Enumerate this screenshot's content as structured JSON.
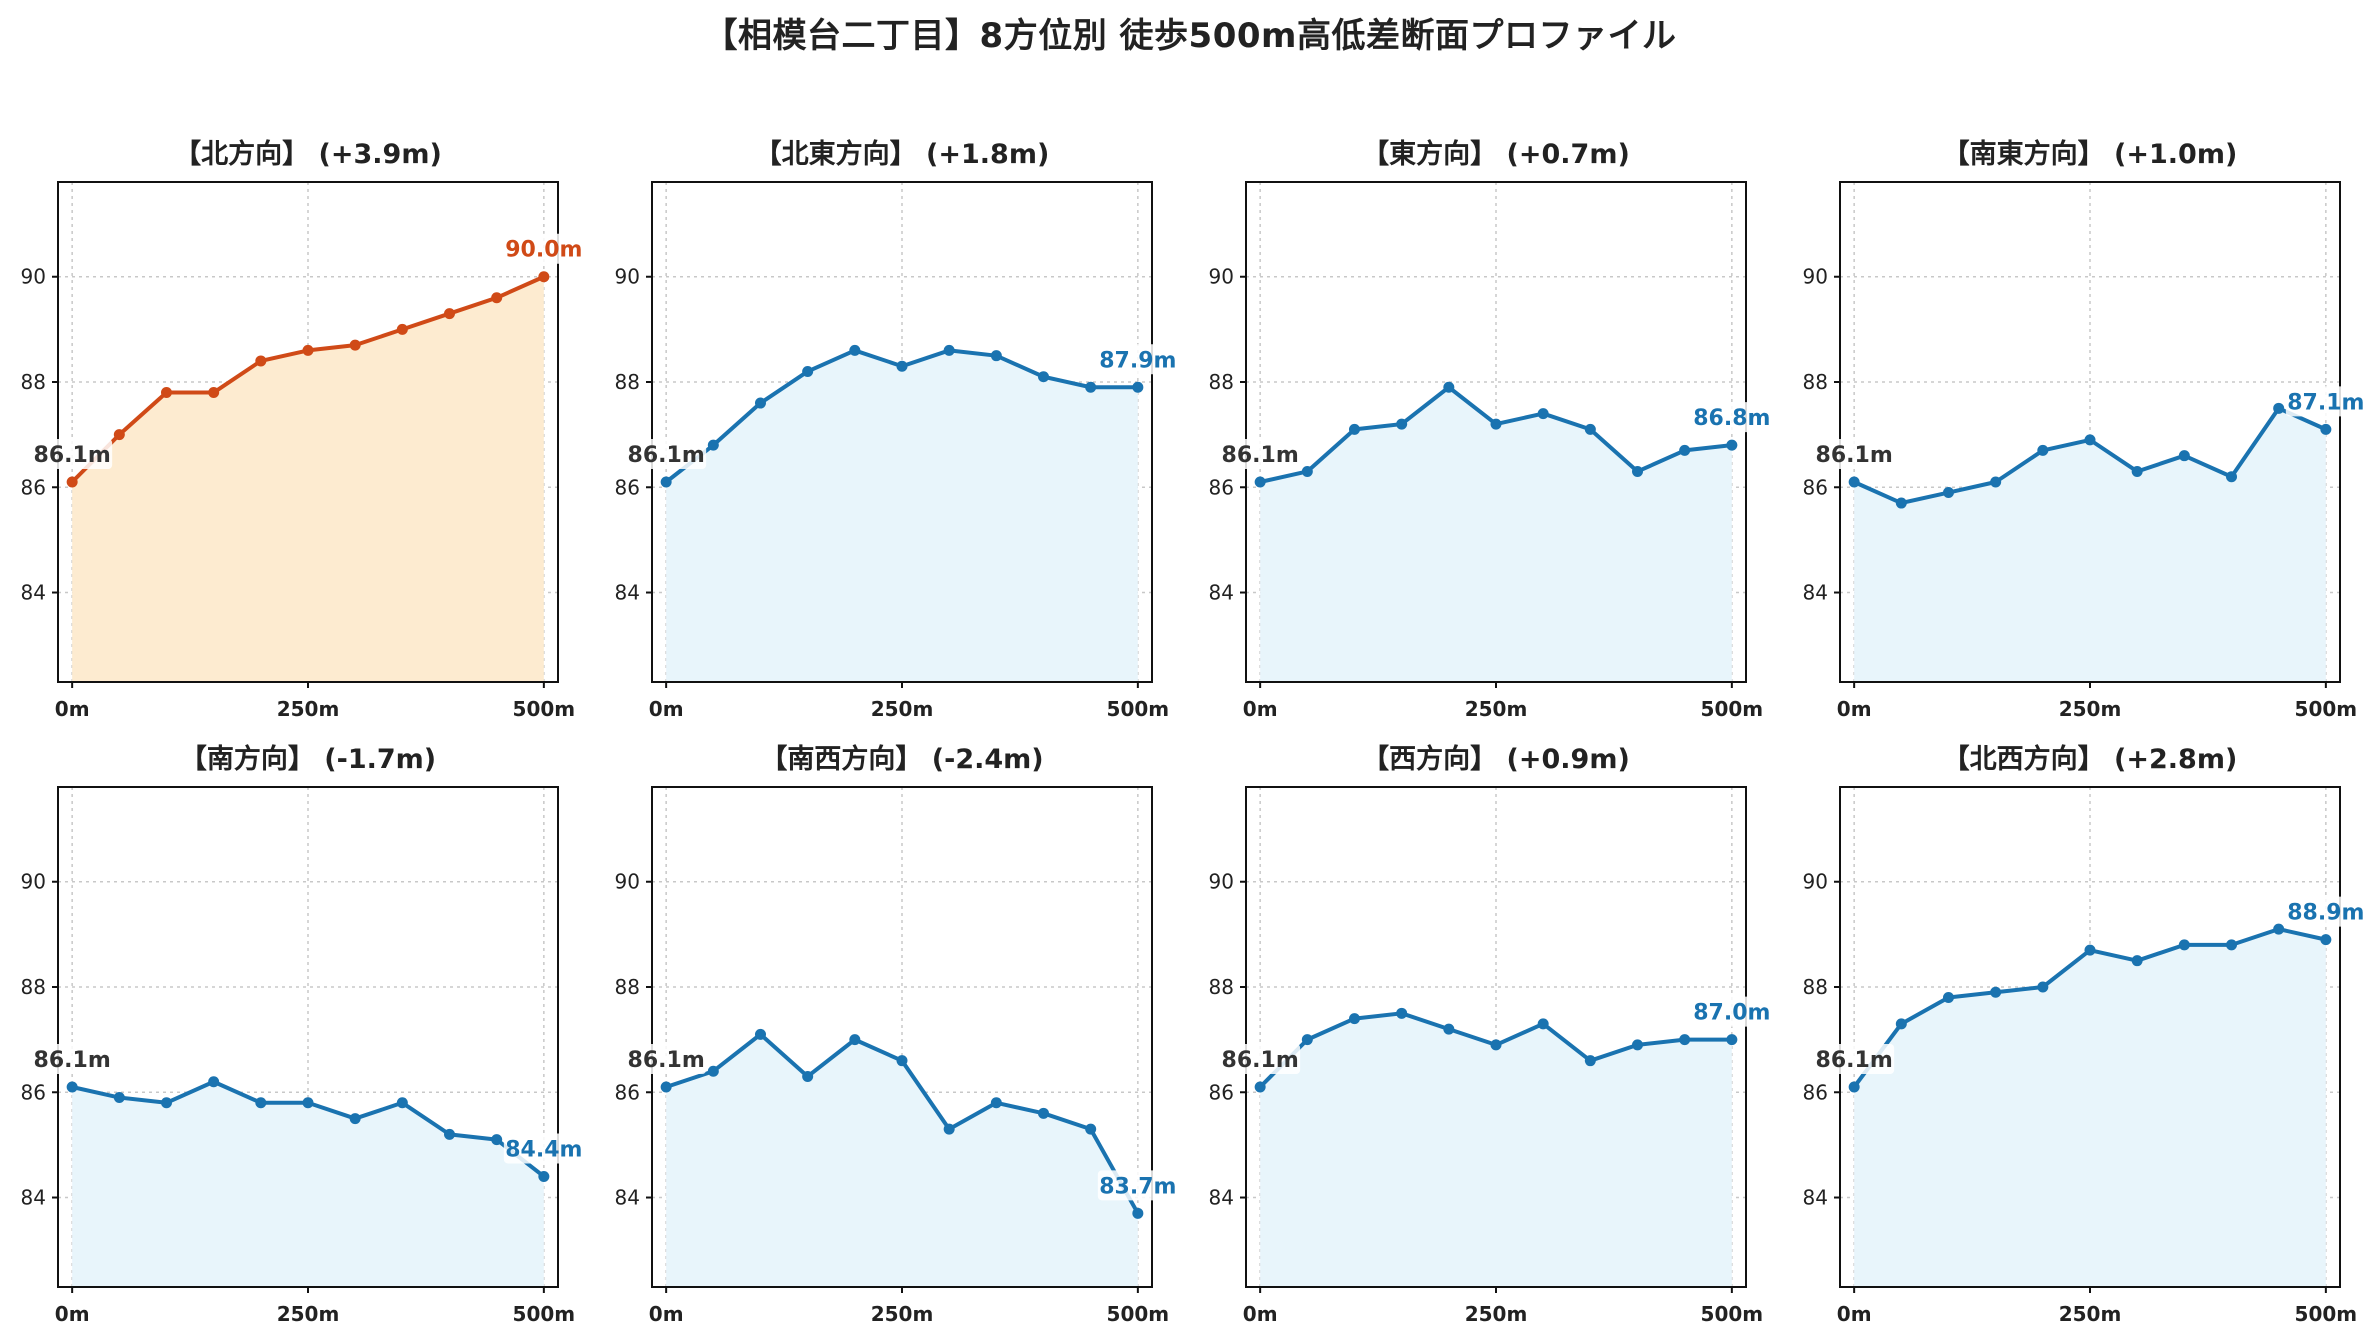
{
  "title": "【相模台二丁目】8方位別 徒歩500m高低差断面プロファイル",
  "colors": {
    "highlight_line": "#d04a17",
    "highlight_fill": "#fdebd0",
    "normal_line": "#1a73b0",
    "normal_fill": "#e8f5fb",
    "start_label": "#333333"
  },
  "chart_data": [
    {
      "type": "area",
      "title": "【北方向】 (+3.9m)",
      "highlight": true,
      "x": [
        0,
        50,
        100,
        150,
        200,
        250,
        300,
        350,
        400,
        450,
        500
      ],
      "y": [
        86.1,
        87.0,
        87.8,
        87.8,
        88.4,
        88.6,
        88.7,
        89.0,
        89.3,
        89.6,
        90.0
      ],
      "start_label": "86.1m",
      "end_label": "90.0m",
      "xticks": [
        "0m",
        "250m",
        "500m"
      ],
      "yticks": [
        84,
        86,
        88,
        90
      ],
      "ylim": [
        82.3,
        91.8
      ],
      "xlim": [
        -15,
        515
      ],
      "grid": true
    },
    {
      "type": "area",
      "title": "【北東方向】 (+1.8m)",
      "highlight": false,
      "x": [
        0,
        50,
        100,
        150,
        200,
        250,
        300,
        350,
        400,
        450,
        500
      ],
      "y": [
        86.1,
        86.8,
        87.6,
        88.2,
        88.6,
        88.3,
        88.6,
        88.5,
        88.1,
        87.9,
        87.9
      ],
      "start_label": "86.1m",
      "end_label": "87.9m",
      "xticks": [
        "0m",
        "250m",
        "500m"
      ],
      "yticks": [
        84,
        86,
        88,
        90
      ],
      "ylim": [
        82.3,
        91.8
      ],
      "xlim": [
        -15,
        515
      ],
      "grid": true
    },
    {
      "type": "area",
      "title": "【東方向】 (+0.7m)",
      "highlight": false,
      "x": [
        0,
        50,
        100,
        150,
        200,
        250,
        300,
        350,
        400,
        450,
        500
      ],
      "y": [
        86.1,
        86.3,
        87.1,
        87.2,
        87.9,
        87.2,
        87.4,
        87.1,
        86.3,
        86.7,
        86.8
      ],
      "start_label": "86.1m",
      "end_label": "86.8m",
      "xticks": [
        "0m",
        "250m",
        "500m"
      ],
      "yticks": [
        84,
        86,
        88,
        90
      ],
      "ylim": [
        82.3,
        91.8
      ],
      "xlim": [
        -15,
        515
      ],
      "grid": true
    },
    {
      "type": "area",
      "title": "【南東方向】 (+1.0m)",
      "highlight": false,
      "x": [
        0,
        50,
        100,
        150,
        200,
        250,
        300,
        350,
        400,
        450,
        500
      ],
      "y": [
        86.1,
        85.7,
        85.9,
        86.1,
        86.7,
        86.9,
        86.3,
        86.6,
        86.2,
        87.5,
        87.1
      ],
      "start_label": "86.1m",
      "end_label": "87.1m",
      "xticks": [
        "0m",
        "250m",
        "500m"
      ],
      "yticks": [
        84,
        86,
        88,
        90
      ],
      "ylim": [
        82.3,
        91.8
      ],
      "xlim": [
        -15,
        515
      ],
      "grid": true
    },
    {
      "type": "area",
      "title": "【南方向】 (-1.7m)",
      "highlight": false,
      "x": [
        0,
        50,
        100,
        150,
        200,
        250,
        300,
        350,
        400,
        450,
        500
      ],
      "y": [
        86.1,
        85.9,
        85.8,
        86.2,
        85.8,
        85.8,
        85.5,
        85.8,
        85.2,
        85.1,
        84.4
      ],
      "start_label": "86.1m",
      "end_label": "84.4m",
      "xticks": [
        "0m",
        "250m",
        "500m"
      ],
      "yticks": [
        84,
        86,
        88,
        90
      ],
      "ylim": [
        82.3,
        91.8
      ],
      "xlim": [
        -15,
        515
      ],
      "grid": true
    },
    {
      "type": "area",
      "title": "【南西方向】 (-2.4m)",
      "highlight": false,
      "x": [
        0,
        50,
        100,
        150,
        200,
        250,
        300,
        350,
        400,
        450,
        500
      ],
      "y": [
        86.1,
        86.4,
        87.1,
        86.3,
        87.0,
        86.6,
        85.3,
        85.8,
        85.6,
        85.3,
        83.7
      ],
      "start_label": "86.1m",
      "end_label": "83.7m",
      "xticks": [
        "0m",
        "250m",
        "500m"
      ],
      "yticks": [
        84,
        86,
        88,
        90
      ],
      "ylim": [
        82.3,
        91.8
      ],
      "xlim": [
        -15,
        515
      ],
      "grid": true
    },
    {
      "type": "area",
      "title": "【西方向】 (+0.9m)",
      "highlight": false,
      "x": [
        0,
        50,
        100,
        150,
        200,
        250,
        300,
        350,
        400,
        450,
        500
      ],
      "y": [
        86.1,
        87.0,
        87.4,
        87.5,
        87.2,
        86.9,
        87.3,
        86.6,
        86.9,
        87.0,
        87.0
      ],
      "start_label": "86.1m",
      "end_label": "87.0m",
      "xticks": [
        "0m",
        "250m",
        "500m"
      ],
      "yticks": [
        84,
        86,
        88,
        90
      ],
      "ylim": [
        82.3,
        91.8
      ],
      "xlim": [
        -15,
        515
      ],
      "grid": true
    },
    {
      "type": "area",
      "title": "【北西方向】 (+2.8m)",
      "highlight": false,
      "x": [
        0,
        50,
        100,
        150,
        200,
        250,
        300,
        350,
        400,
        450,
        500
      ],
      "y": [
        86.1,
        87.3,
        87.8,
        87.9,
        88.0,
        88.7,
        88.5,
        88.8,
        88.8,
        89.1,
        88.9
      ],
      "start_label": "86.1m",
      "end_label": "88.9m",
      "xticks": [
        "0m",
        "250m",
        "500m"
      ],
      "yticks": [
        84,
        86,
        88,
        90
      ],
      "ylim": [
        82.3,
        91.8
      ],
      "xlim": [
        -15,
        515
      ],
      "grid": true
    }
  ]
}
